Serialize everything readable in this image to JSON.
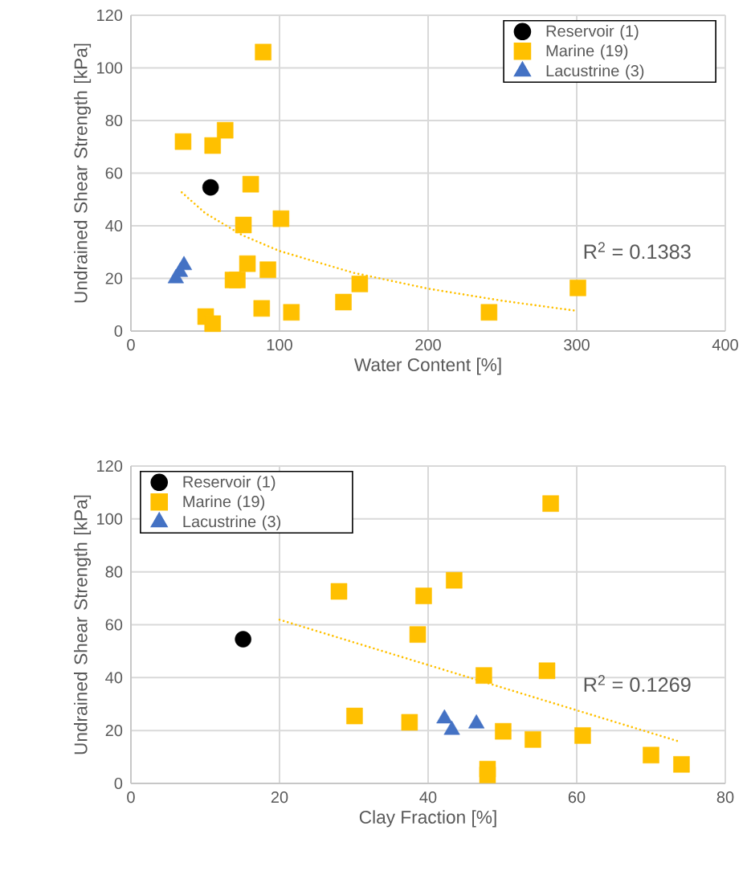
{
  "chart_data": [
    {
      "type": "scatter",
      "xlabel": "Water Content  [%]",
      "ylabel": "Undrained Shear Strength [kPa]",
      "xlim": [
        0,
        400
      ],
      "ylim": [
        0,
        120
      ],
      "xticks": [
        0,
        100,
        200,
        300,
        400
      ],
      "yticks": [
        0,
        20,
        40,
        60,
        80,
        100,
        120
      ],
      "grid": true,
      "legend": "top right",
      "series": [
        {
          "name": "Reservoir (1)",
          "color": "#000000",
          "marker": "circle",
          "x": [
            53.6
          ],
          "values": [
            54.6
          ]
        },
        {
          "name": "Marine (19)",
          "color": "#ffc000",
          "marker": "square",
          "x": [
            89,
            63.4,
            35.1,
            55,
            80.6,
            75.7,
            101,
            78.4,
            92.2,
            68.7,
            71.6,
            50.3,
            55,
            88,
            108,
            143,
            154,
            300.8,
            241
          ],
          "values": [
            106,
            76.3,
            72,
            70.5,
            55.8,
            40.3,
            42.7,
            25.6,
            23.3,
            19.4,
            19.4,
            5.5,
            2.8,
            8.6,
            7.1,
            11,
            17.9,
            16.4,
            7.1
          ]
        },
        {
          "name": "Lacustrine (3)",
          "color": "#4472c4",
          "marker": "triangle",
          "x": [
            35.7,
            33,
            30.2
          ],
          "values": [
            25,
            22.4,
            20
          ]
        },
        {
          "type": "line",
          "color": "#ffc000",
          "marker": "none",
          "line_style": "dotted",
          "x": [
            34.2,
            50,
            75,
            100,
            150,
            200,
            250,
            299.6
          ],
          "values": [
            52.7,
            44.8,
            36.4,
            30.4,
            22.1,
            16.1,
            11.5,
            7.7
          ]
        }
      ],
      "annotations": [
        "R$^{2}$ = 0.1383"
      ]
    },
    {
      "type": "scatter",
      "xlabel": "Clay Fraction  [%]",
      "ylabel": "Undrained Shear Strength [kPa]",
      "xlim": [
        0,
        80
      ],
      "ylim": [
        0,
        120
      ],
      "xticks": [
        0,
        20,
        40,
        60,
        80
      ],
      "yticks": [
        0,
        20,
        40,
        60,
        80,
        100,
        120
      ],
      "grid": true,
      "legend": "top left",
      "series": [
        {
          "name": "Reservoir (1)",
          "color": "#000000",
          "marker": "circle",
          "x": [
            15.1
          ],
          "values": [
            54.5
          ]
        },
        {
          "name": "Marine (19)",
          "color": "#ffc000",
          "marker": "square",
          "x": [
            28,
            39.4,
            38.6,
            30.1,
            37.5,
            56.5,
            43.5,
            47.5,
            56,
            50.1,
            54.1,
            60.8,
            70,
            74.1,
            48,
            48
          ],
          "values": [
            72.6,
            70.9,
            56.3,
            25.5,
            23.1,
            105.8,
            76.8,
            40.8,
            42.6,
            19.7,
            16.6,
            18.1,
            10.7,
            7.2,
            5.4,
            3.2
          ]
        },
        {
          "name": "Lacustrine (3)",
          "color": "#4472c4",
          "marker": "triangle",
          "x": [
            42.2,
            43.2,
            46.5
          ],
          "values": [
            24.5,
            20.2,
            22.6
          ]
        },
        {
          "type": "line",
          "color": "#ffc000",
          "marker": "none",
          "line_style": "dotted",
          "x": [
            20,
            73.6
          ],
          "values": [
            61.9,
            16
          ]
        }
      ],
      "annotations": [
        "R$^{2}$ = 0.1269"
      ]
    }
  ]
}
